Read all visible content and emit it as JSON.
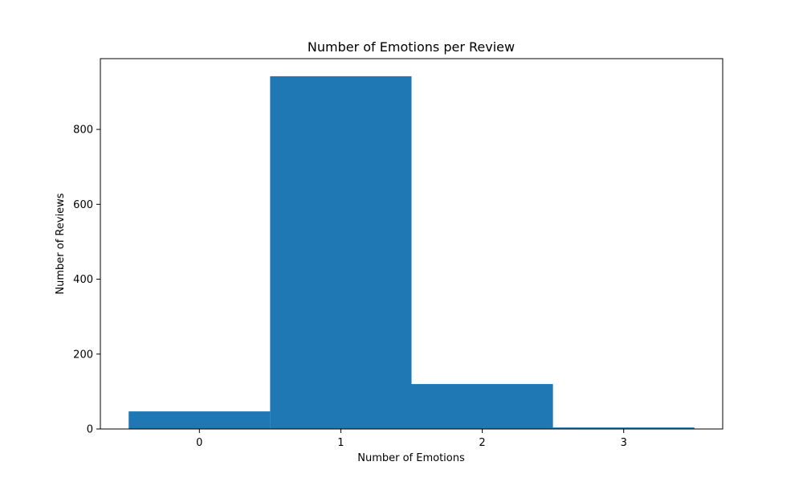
{
  "chart_data": {
    "type": "bar",
    "title": "Number of Emotions per Review",
    "xlabel": "Number of Emotions",
    "ylabel": "Number of Reviews",
    "categories": [
      "0",
      "1",
      "2",
      "3"
    ],
    "values": [
      47,
      942,
      120,
      4
    ],
    "xlim": [
      -0.7,
      3.7
    ],
    "ylim": [
      0,
      989
    ],
    "xticks": [
      0,
      1,
      2,
      3
    ],
    "yticks": [
      0,
      200,
      400,
      600,
      800
    ],
    "bar_color": "#1f77b4",
    "grid": false,
    "legend": false
  }
}
